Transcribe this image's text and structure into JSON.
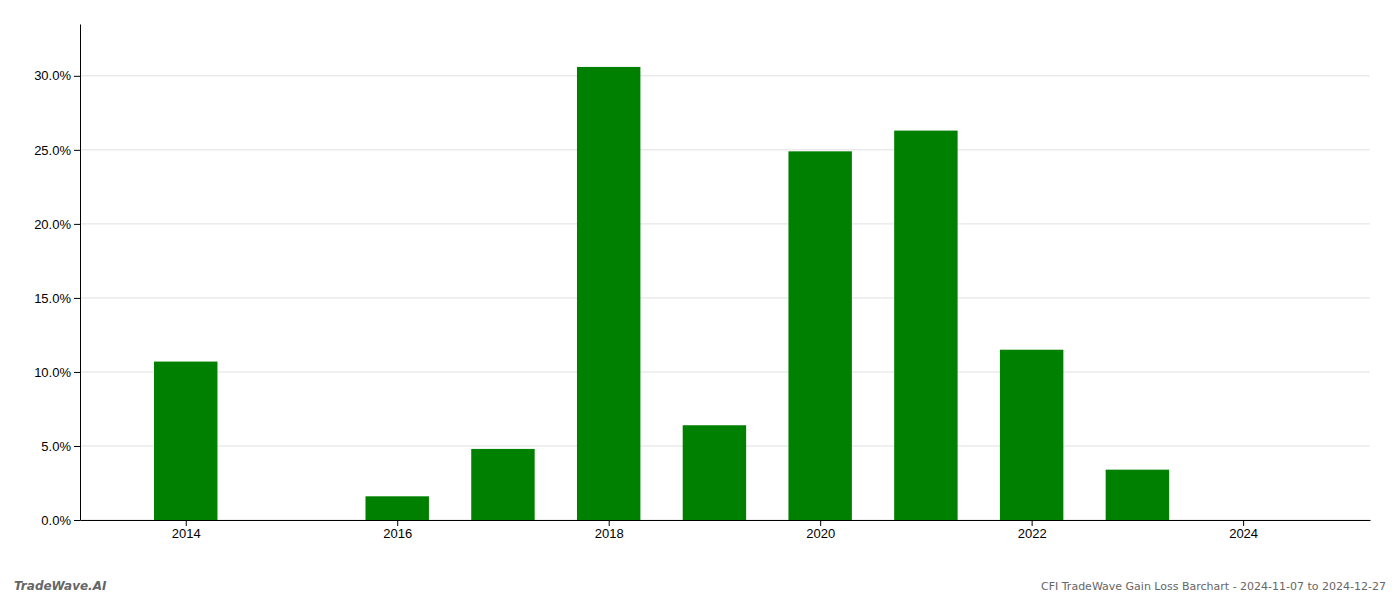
{
  "chart_data": {
    "type": "bar",
    "x": [
      2014,
      2015,
      2016,
      2017,
      2018,
      2019,
      2020,
      2021,
      2022,
      2023,
      2024
    ],
    "values": [
      0.107,
      0.0,
      0.016,
      0.048,
      0.306,
      0.064,
      0.249,
      0.263,
      0.115,
      0.034,
      0.0
    ],
    "color": "#008000",
    "xlim": [
      2013.0,
      2025.2
    ],
    "xticks": [
      2014,
      2016,
      2018,
      2020,
      2022,
      2024
    ],
    "ylim": [
      0.0,
      0.335
    ],
    "yticks": [
      {
        "value": 0.0,
        "label": "0.0%"
      },
      {
        "value": 0.05,
        "label": "5.0%"
      },
      {
        "value": 0.1,
        "label": "10.0%"
      },
      {
        "value": 0.15,
        "label": "15.0%"
      },
      {
        "value": 0.2,
        "label": "20.0%"
      },
      {
        "value": 0.25,
        "label": "25.0%"
      },
      {
        "value": 0.3,
        "label": "30.0%"
      }
    ],
    "grid": true,
    "annotations": [
      "TradeWave.AI",
      "CFI TradeWave Gain Loss Barchart - 2024-11-07 to 2024-12-27"
    ]
  }
}
